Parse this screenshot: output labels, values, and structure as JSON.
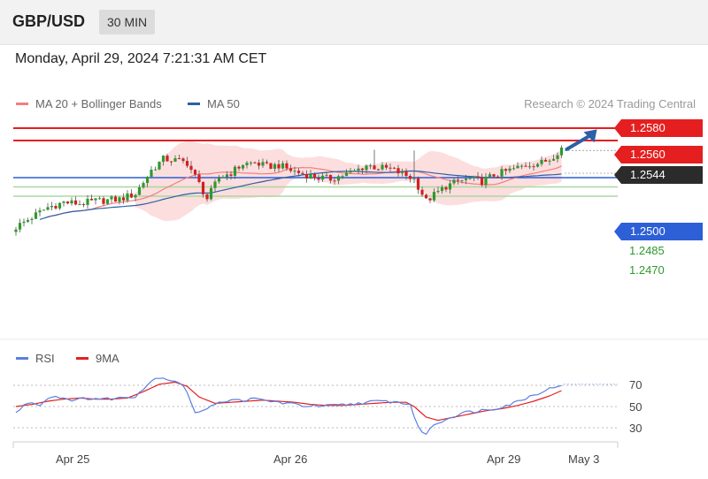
{
  "header": {
    "pair": "GBP/USD",
    "timeframe": "30 MIN"
  },
  "datetime": "Monday, April 29, 2024 7:21:31 AM CET",
  "credit": "Research © 2024 Trading Central",
  "colors": {
    "ma20": "#f08080",
    "ma50": "#2d5fa6",
    "bands": "#fbd3d3",
    "resistance": "#e51f1f",
    "support": "#a8d8a0",
    "pivot": "#2d5fd6",
    "up_candle": "#2e9a2e",
    "down_candle": "#d32020",
    "rsi": "#5b7fe0",
    "rsi_ma": "#e51f1f",
    "arrow": "#2d5fa6"
  },
  "chart_data": [
    {
      "type": "candlestick",
      "legend": [
        {
          "name": "MA 20 + Bollinger Bands",
          "color": "#f08080"
        },
        {
          "name": "MA 50",
          "color": "#2d5fa6"
        }
      ],
      "ylim": [
        1.2418,
        1.2595
      ],
      "levels": [
        {
          "label": "1.2580",
          "value": 1.258,
          "kind": "resistance"
        },
        {
          "label": "1.2560",
          "value": 1.256,
          "kind": "resistance"
        },
        {
          "label": "1.2544",
          "value": 1.2544,
          "kind": "current"
        },
        {
          "label": "1.2500",
          "value": 1.25,
          "kind": "pivot"
        },
        {
          "label": "1.2485",
          "value": 1.2485,
          "kind": "support"
        },
        {
          "label": "1.2470",
          "value": 1.247,
          "kind": "support"
        }
      ],
      "x_ticks": [
        "Apr 25",
        "Apr 26",
        "Apr 29",
        "May 3"
      ],
      "trend_arrow": {
        "from": [
          137,
          1.2546
        ],
        "to": [
          145,
          1.2578
        ]
      },
      "close_path": [
        [
          0,
          1.242
        ],
        [
          4,
          1.2436
        ],
        [
          8,
          1.2452
        ],
        [
          12,
          1.246
        ],
        [
          16,
          1.2458
        ],
        [
          20,
          1.2462
        ],
        [
          26,
          1.2465
        ],
        [
          30,
          1.2474
        ],
        [
          34,
          1.2512
        ],
        [
          37,
          1.253
        ],
        [
          40,
          1.2528
        ],
        [
          43,
          1.2524
        ],
        [
          46,
          1.249
        ],
        [
          48,
          1.2466
        ],
        [
          51,
          1.25
        ],
        [
          54,
          1.2508
        ],
        [
          57,
          1.2522
        ],
        [
          60,
          1.2524
        ],
        [
          63,
          1.2518
        ],
        [
          66,
          1.252
        ],
        [
          69,
          1.2512
        ],
        [
          72,
          1.2506
        ],
        [
          76,
          1.25
        ],
        [
          79,
          1.2498
        ],
        [
          82,
          1.2504
        ],
        [
          85,
          1.251
        ],
        [
          88,
          1.252
        ],
        [
          91,
          1.2516
        ],
        [
          94,
          1.2514
        ],
        [
          97,
          1.2506
        ],
        [
          100,
          1.2498
        ],
        [
          103,
          1.2462
        ],
        [
          105,
          1.2472
        ],
        [
          108,
          1.2486
        ],
        [
          111,
          1.2494
        ],
        [
          114,
          1.2498
        ],
        [
          117,
          1.2494
        ],
        [
          120,
          1.2504
        ],
        [
          123,
          1.251
        ],
        [
          126,
          1.2516
        ],
        [
          129,
          1.2522
        ],
        [
          132,
          1.2524
        ],
        [
          134,
          1.253
        ],
        [
          137,
          1.2548
        ]
      ],
      "spikes": [
        [
          44,
          1.2527
        ],
        [
          90,
          1.2545
        ],
        [
          100,
          1.2544
        ]
      ]
    },
    {
      "type": "line",
      "series": [
        {
          "name": "RSI"
        },
        {
          "name": "9MA"
        }
      ],
      "ylim": [
        20,
        80
      ],
      "y_ticks": [
        70,
        50,
        30
      ],
      "rsi_path": [
        [
          0,
          44
        ],
        [
          3,
          54
        ],
        [
          6,
          52
        ],
        [
          9,
          60
        ],
        [
          12,
          58
        ],
        [
          15,
          56
        ],
        [
          18,
          58
        ],
        [
          22,
          57
        ],
        [
          26,
          58
        ],
        [
          30,
          60
        ],
        [
          34,
          74
        ],
        [
          36,
          78
        ],
        [
          38,
          76
        ],
        [
          41,
          73
        ],
        [
          43,
          64
        ],
        [
          45,
          44
        ],
        [
          47,
          45
        ],
        [
          49,
          52
        ],
        [
          52,
          55
        ],
        [
          56,
          56
        ],
        [
          60,
          57
        ],
        [
          64,
          55
        ],
        [
          68,
          53
        ],
        [
          72,
          51
        ],
        [
          76,
          50
        ],
        [
          80,
          51
        ],
        [
          84,
          52
        ],
        [
          88,
          54
        ],
        [
          92,
          55
        ],
        [
          96,
          54
        ],
        [
          99,
          52
        ],
        [
          101,
          30
        ],
        [
          103,
          24
        ],
        [
          105,
          33
        ],
        [
          108,
          38
        ],
        [
          112,
          44
        ],
        [
          116,
          46
        ],
        [
          120,
          48
        ],
        [
          124,
          52
        ],
        [
          128,
          58
        ],
        [
          132,
          64
        ],
        [
          135,
          68
        ],
        [
          137,
          71
        ]
      ],
      "ma_path": [
        [
          0,
          50
        ],
        [
          4,
          52
        ],
        [
          8,
          55
        ],
        [
          12,
          57
        ],
        [
          16,
          58
        ],
        [
          20,
          57
        ],
        [
          24,
          57
        ],
        [
          28,
          58
        ],
        [
          32,
          64
        ],
        [
          36,
          71
        ],
        [
          40,
          73
        ],
        [
          43,
          69
        ],
        [
          46,
          59
        ],
        [
          50,
          53
        ],
        [
          54,
          54
        ],
        [
          58,
          55
        ],
        [
          62,
          56
        ],
        [
          66,
          55
        ],
        [
          70,
          54
        ],
        [
          74,
          52
        ],
        [
          78,
          51
        ],
        [
          82,
          51
        ],
        [
          86,
          52
        ],
        [
          90,
          53
        ],
        [
          94,
          54
        ],
        [
          98,
          54
        ],
        [
          100,
          50
        ],
        [
          103,
          40
        ],
        [
          106,
          37
        ],
        [
          110,
          40
        ],
        [
          114,
          43
        ],
        [
          118,
          46
        ],
        [
          122,
          48
        ],
        [
          126,
          51
        ],
        [
          130,
          55
        ],
        [
          134,
          60
        ],
        [
          137,
          65
        ]
      ]
    }
  ]
}
